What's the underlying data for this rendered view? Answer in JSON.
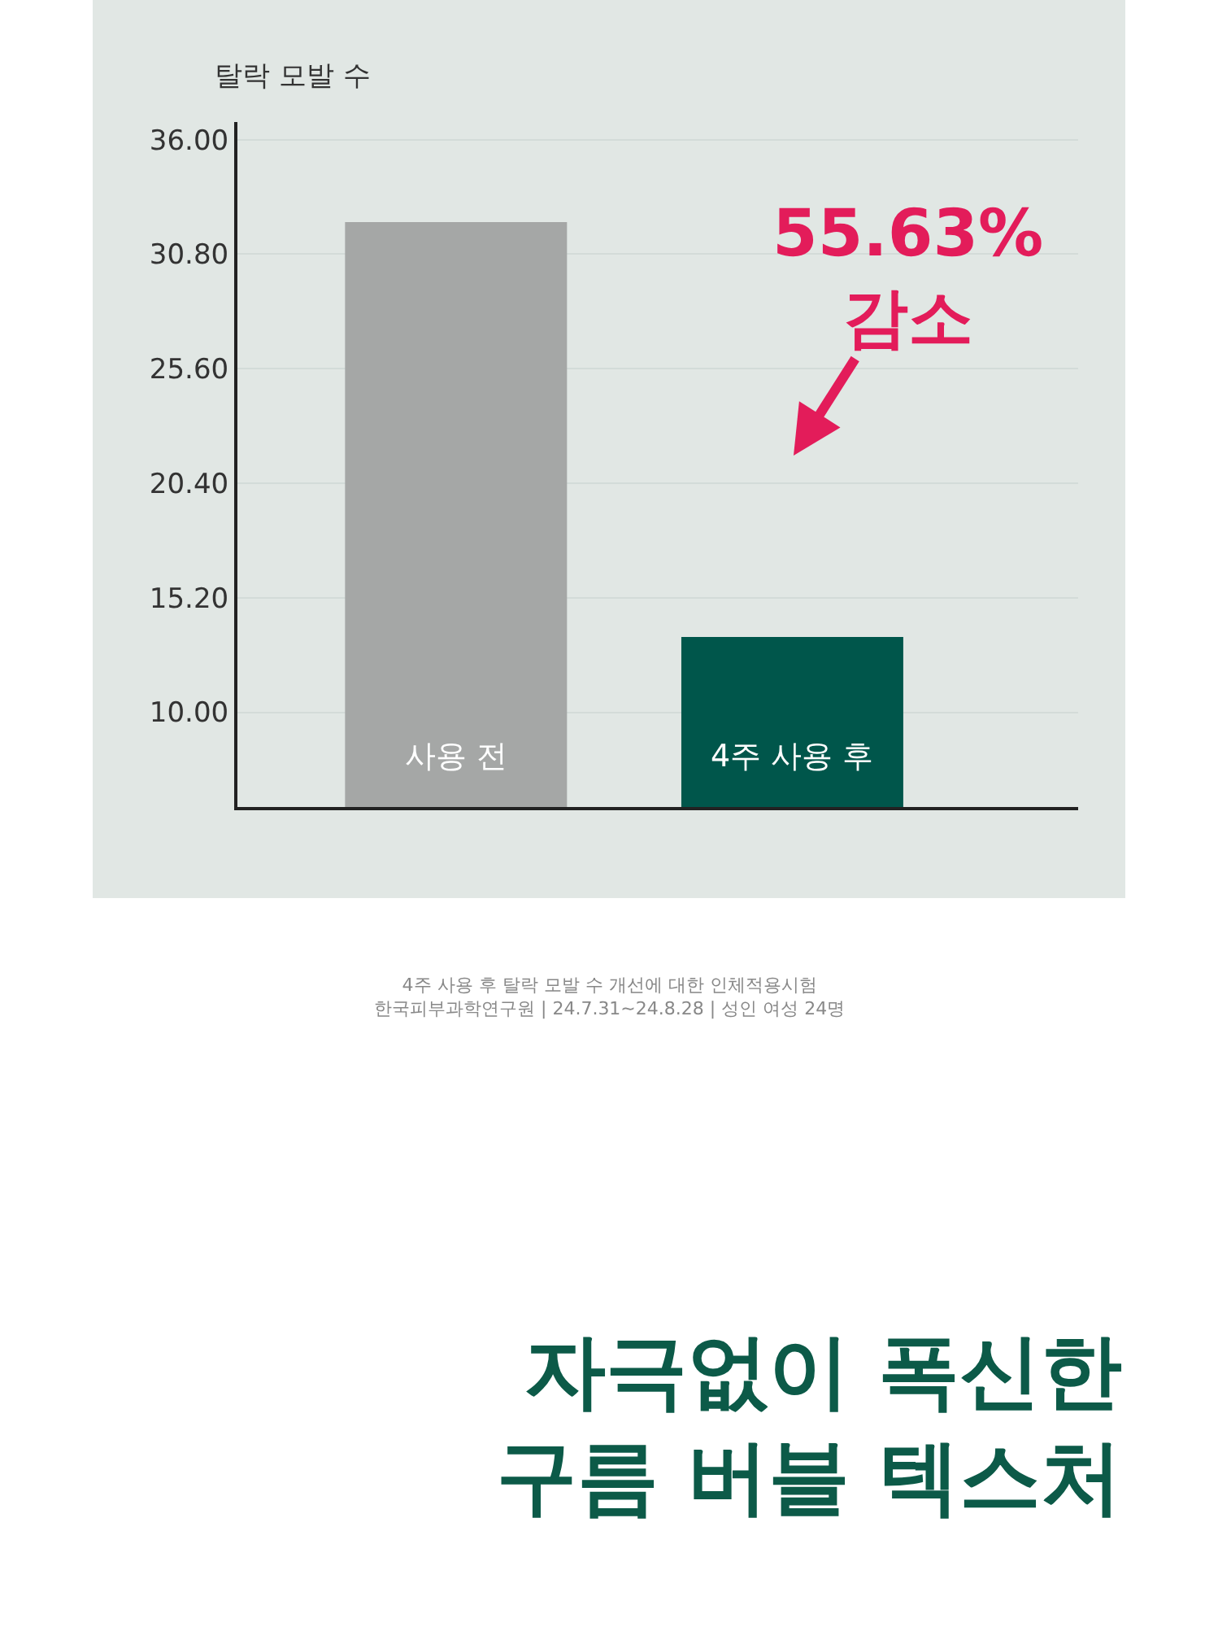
{
  "chart_data": {
    "type": "bar",
    "ylabel": "탈락 모발 수",
    "categories": [
      "사용 전",
      "4주 사용 후"
    ],
    "values": [
      32.26,
      13.42
    ],
    "colors": [
      "#a5a7a6",
      "#00564b"
    ],
    "ylim": [
      5.7,
      36.8
    ],
    "yticks": [
      {
        "value": 10,
        "label": "10.00"
      },
      {
        "value": 15.2,
        "label": "15.20"
      },
      {
        "value": 20.4,
        "label": "20.40"
      },
      {
        "value": 25.6,
        "label": "25.60"
      },
      {
        "value": 30.8,
        "label": "30.80"
      },
      {
        "value": 36,
        "label": "36.00"
      }
    ],
    "grid": "y",
    "annotations": [
      "55.63%\n감소",
      "4주 사용 후 탈락 모발 수 개선에 대한 인체적용시험\n한국피부과학연구원 | 24.7.31~24.8.28 | 성인 여성 24명",
      "자극없이 폭신한\n구름 버블 텍스처"
    ]
  }
}
